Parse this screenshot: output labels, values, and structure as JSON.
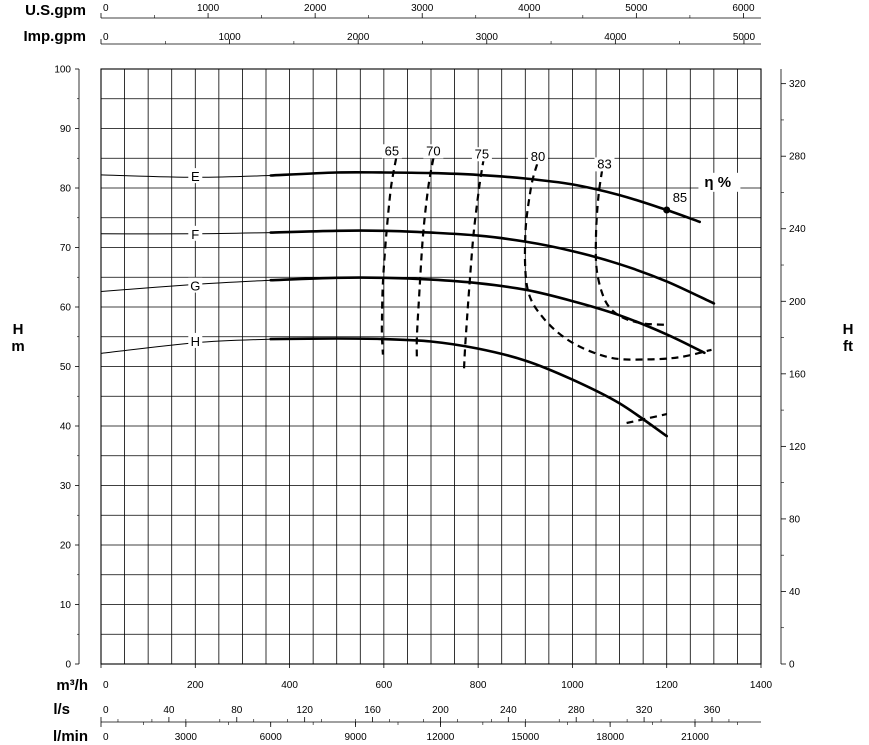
{
  "chart_data": {
    "type": "line",
    "title": "",
    "x": {
      "label": "m³/h",
      "range": [
        0,
        1400
      ],
      "ticks": [
        0,
        200,
        400,
        600,
        800,
        1000,
        1200,
        1400
      ],
      "tick_labels": [
        "0",
        "200",
        "400",
        "600",
        "800",
        "1000",
        "1200",
        "1400"
      ]
    },
    "y": {
      "label_left": [
        "H",
        "m"
      ],
      "label_right": [
        "H",
        "ft"
      ],
      "range": [
        0,
        100
      ],
      "ticks": [
        0,
        10,
        20,
        30,
        40,
        50,
        60,
        70,
        80,
        90,
        100
      ],
      "tick_labels": [
        "0",
        "10",
        "20",
        "30",
        "40",
        "50",
        "60",
        "70",
        "80",
        "90",
        "100"
      ]
    },
    "y_right": {
      "label": "ft",
      "ticks": [
        0,
        40,
        80,
        120,
        160,
        200,
        240,
        280,
        320
      ],
      "tick_labels": [
        "0",
        "40",
        "80",
        "120",
        "160",
        "200",
        "240",
        "280",
        "320"
      ]
    },
    "top_axes": [
      {
        "label": "U.S.gpm",
        "ticks": [
          0,
          1000,
          2000,
          3000,
          4000,
          5000,
          6000
        ],
        "tick_labels": [
          "0",
          "1000",
          "2000",
          "3000",
          "4000",
          "5000",
          "6000"
        ]
      },
      {
        "label": "Imp.gpm",
        "ticks": [
          0,
          1000,
          2000,
          3000,
          4000,
          5000
        ],
        "tick_labels": [
          "0",
          "1000",
          "2000",
          "3000",
          "4000",
          "5000"
        ]
      }
    ],
    "bottom_axes": [
      {
        "label": "l/s",
        "ticks": [
          0,
          40,
          80,
          120,
          160,
          200,
          240,
          280,
          320,
          360
        ],
        "tick_labels": [
          "0",
          "40",
          "80",
          "120",
          "160",
          "200",
          "240",
          "280",
          "320",
          "360"
        ]
      },
      {
        "label": "l/min",
        "ticks": [
          0,
          3000,
          6000,
          9000,
          12000,
          15000,
          18000,
          21000
        ],
        "tick_labels": [
          "0",
          "3000",
          "6000",
          "9000",
          "12000",
          "15000",
          "18000",
          "21000"
        ]
      }
    ],
    "grid": true,
    "series": [
      {
        "name": "E",
        "label_at": [
          200,
          82
        ],
        "x": [
          0,
          200,
          360,
          500,
          600,
          700,
          800,
          900,
          1000,
          1100,
          1200,
          1270
        ],
        "y": [
          82.2,
          81.8,
          82.1,
          82.6,
          82.6,
          82.5,
          82.2,
          81.6,
          80.6,
          78.8,
          76.3,
          74.3
        ]
      },
      {
        "name": "F",
        "label_at": [
          200,
          72.3
        ],
        "x": [
          0,
          200,
          360,
          500,
          600,
          700,
          800,
          900,
          1000,
          1100,
          1200,
          1300
        ],
        "y": [
          72.3,
          72.3,
          72.5,
          72.8,
          72.8,
          72.5,
          72.0,
          71.0,
          69.4,
          67.2,
          64.3,
          60.6
        ]
      },
      {
        "name": "G",
        "label_at": [
          200,
          63.6
        ],
        "x": [
          0,
          200,
          360,
          500,
          600,
          700,
          800,
          900,
          1000,
          1100,
          1200,
          1280
        ],
        "y": [
          62.6,
          63.8,
          64.5,
          64.9,
          64.9,
          64.6,
          64.0,
          62.9,
          61.0,
          58.6,
          55.4,
          52.3
        ]
      },
      {
        "name": "H",
        "label_at": [
          200,
          54.3
        ],
        "x": [
          0,
          200,
          360,
          500,
          600,
          700,
          800,
          900,
          1000,
          1100,
          1200
        ],
        "y": [
          52.2,
          54.0,
          54.6,
          54.7,
          54.6,
          54.2,
          53.0,
          51.0,
          47.8,
          43.8,
          38.3
        ]
      }
    ],
    "efficiency_curves": [
      {
        "name": "65",
        "label_at": [
          617,
          85.5
        ],
        "x": [
          626,
          615,
          605,
          598,
          596,
          596,
          598
        ],
        "y": [
          85.0,
          80.0,
          72.0,
          64.0,
          58.0,
          55.0,
          52.0
        ]
      },
      {
        "name": "70",
        "label_at": [
          705,
          85.5
        ],
        "x": [
          705,
          694,
          683,
          675,
          670,
          670
        ],
        "y": [
          85.0,
          80.0,
          72.0,
          62.0,
          55.0,
          51.0
        ]
      },
      {
        "name": "75",
        "label_at": [
          808,
          85.0
        ],
        "x": [
          812,
          802,
          790,
          780,
          773,
          770
        ],
        "y": [
          85.0,
          80.0,
          72.0,
          62.0,
          54.0,
          49.5
        ]
      },
      {
        "name": "80",
        "label_at": [
          927,
          84.5
        ],
        "x": [
          925,
          912,
          900,
          905,
          940,
          1000,
          1080,
          1160,
          1230,
          1295
        ],
        "y": [
          84.0,
          80.0,
          72.0,
          63.0,
          58.0,
          54.0,
          51.5,
          51.2,
          51.6,
          52.8
        ]
      },
      {
        "name": "83",
        "label_at": [
          1068,
          83.3
        ],
        "x": [
          1063,
          1055,
          1050,
          1052,
          1070,
          1100,
          1145,
          1200
        ],
        "y": [
          83.0,
          78.5,
          72.0,
          66.0,
          61.0,
          58.5,
          57.3,
          57.0
        ]
      },
      {
        "name": "83",
        "label_at": null,
        "x": [
          1115,
          1160,
          1200
        ],
        "y": [
          40.5,
          41.3,
          42.0
        ]
      }
    ],
    "bep_point": {
      "name": "85",
      "x": 1200,
      "y": 76.3
    },
    "annotations": [
      "η %"
    ]
  }
}
